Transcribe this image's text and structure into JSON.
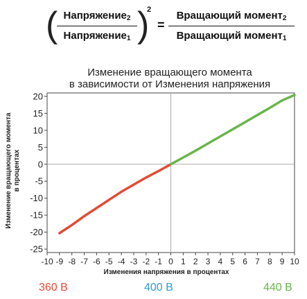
{
  "formula": {
    "left_num": "Напряжение",
    "left_num_sub": "2",
    "left_den": "Напряжение",
    "left_den_sub": "1",
    "exponent": "2",
    "equals": "=",
    "right_num": "Вращающий момент",
    "right_num_sub": "2",
    "right_den": "Вращающий момент",
    "right_den_sub": "1"
  },
  "chart_data": {
    "type": "line",
    "title": [
      "Изменение вращающего момента",
      "в зависимости от Изменения напряжения"
    ],
    "xlabel": "Изменения напряжения в процентах",
    "ylabel": [
      "Изменение вращающего момента",
      "в процентах"
    ],
    "xlim": [
      -10,
      10
    ],
    "ylim": [
      -26,
      21
    ],
    "x_ticks": [
      "-10",
      "-9",
      "-8",
      "-7",
      "-6",
      "-5",
      "-4",
      "-3",
      "-2",
      "-1",
      "0",
      "1",
      "2",
      "3",
      "4",
      "5",
      "6",
      "7",
      "8",
      "9",
      "10"
    ],
    "y_ticks": [
      "-25",
      "-20",
      "-15",
      "-10",
      "-5",
      "0",
      "5",
      "10",
      "15",
      "20"
    ],
    "series": [
      {
        "name": "360 В",
        "color": "#e44a35",
        "x": [
          -9,
          -8,
          -7,
          -6,
          -5,
          -4,
          -3,
          -2,
          -1,
          0
        ],
        "y": [
          -20.3,
          -17.9,
          -15.3,
          -12.9,
          -10.5,
          -8.1,
          -6.0,
          -3.9,
          -2.0,
          0
        ]
      },
      {
        "name": "440 В",
        "color": "#6ab44a",
        "x": [
          0,
          1,
          2,
          3,
          4,
          5,
          6,
          7,
          8,
          9,
          10
        ],
        "y": [
          0,
          2.0,
          4.0,
          6.1,
          8.2,
          10.3,
          12.4,
          14.5,
          16.6,
          18.8,
          20.4
        ]
      }
    ],
    "grid": false,
    "crosshair_axes": true
  },
  "legend": {
    "left": "360 В",
    "center": "400 В",
    "right": "440 В"
  }
}
